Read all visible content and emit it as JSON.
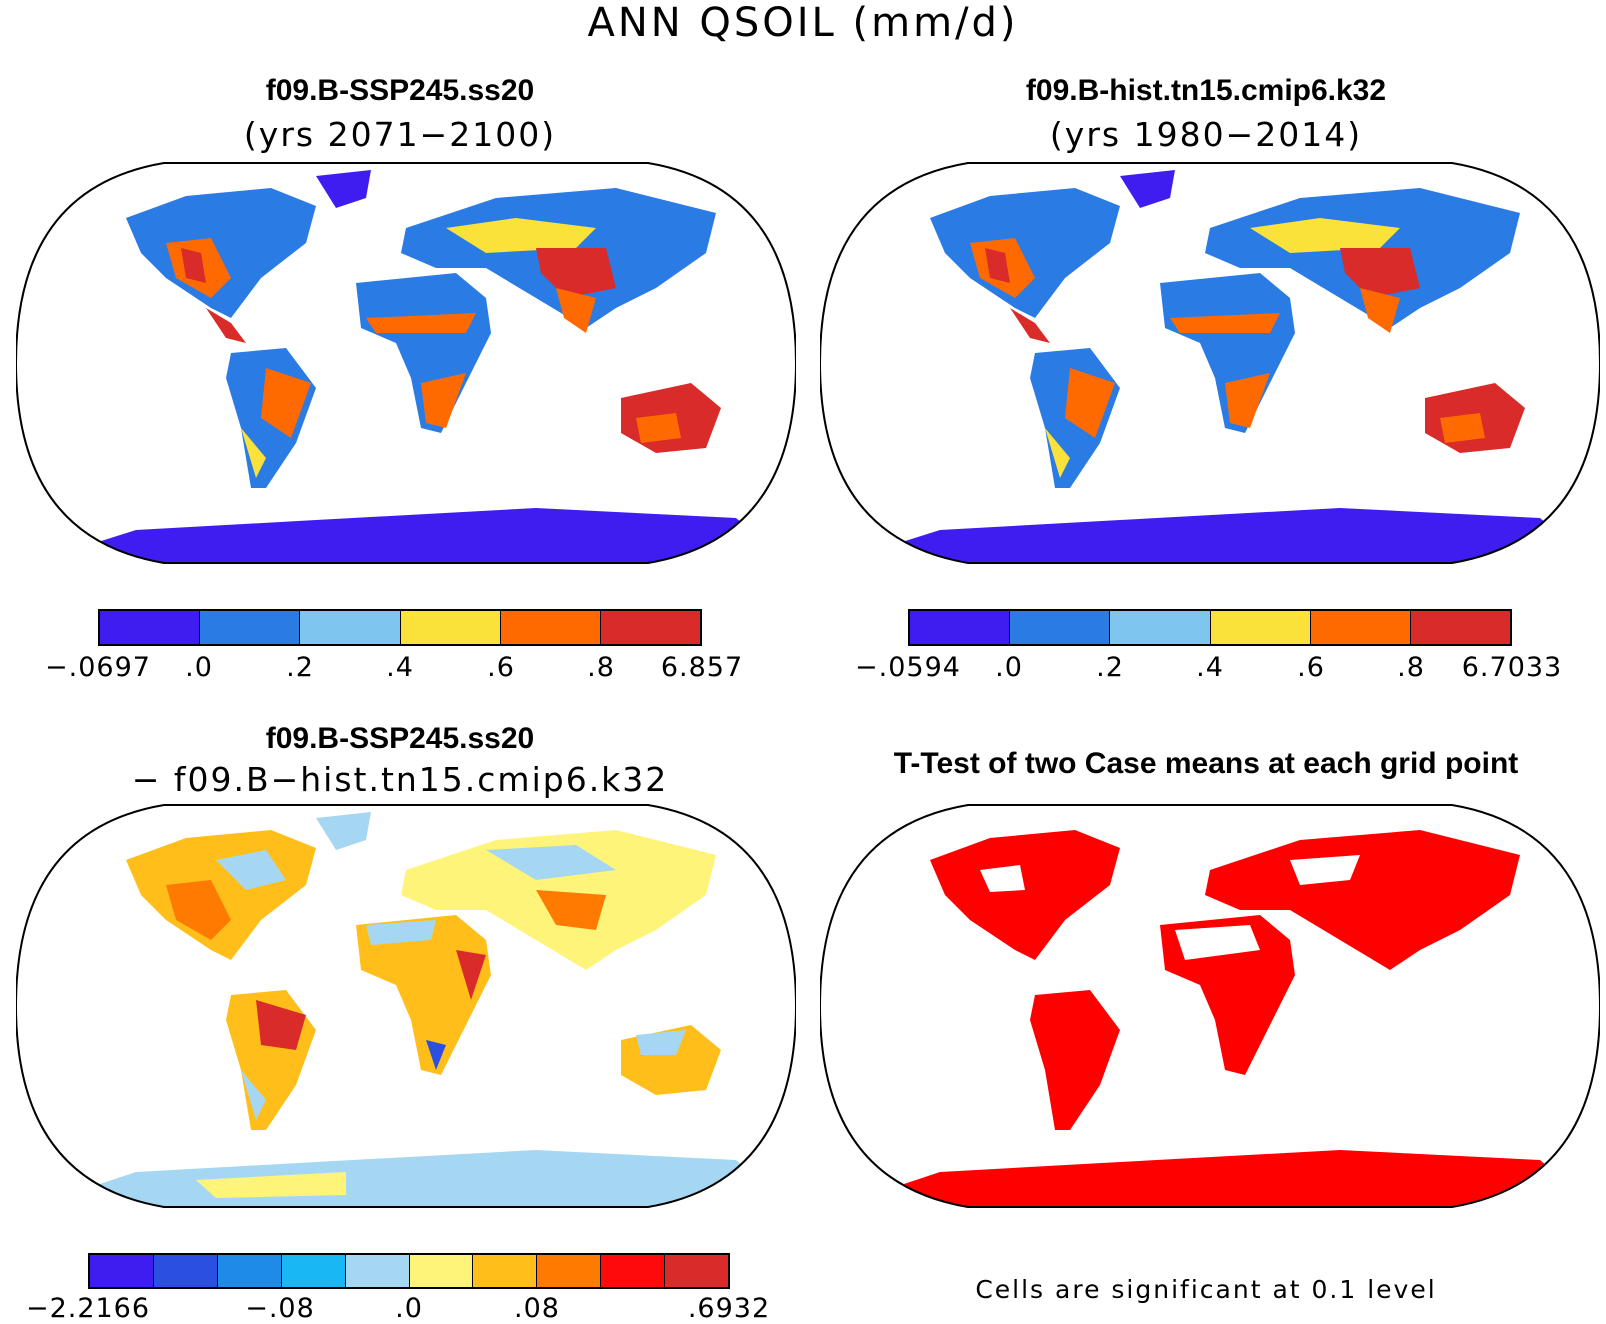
{
  "main_title": "ANN QSOIL (mm/d)",
  "panels": [
    {
      "title": "f09.B-SSP245.ss20",
      "subtitle": "(yrs 2071−2100)",
      "colorbar": {
        "colors": [
          "#3f1df0",
          "#2a7be4",
          "#7ec5f0",
          "#fbe23a",
          "#ff6a00",
          "#d92b2a"
        ],
        "labels": [
          "−.0697",
          ".0",
          ".2",
          ".4",
          ".6",
          ".8",
          "6.857"
        ]
      }
    },
    {
      "title": "f09.B-hist.tn15.cmip6.k32",
      "subtitle": "(yrs 1980−2014)",
      "colorbar": {
        "colors": [
          "#3f1df0",
          "#2a7be4",
          "#7ec5f0",
          "#fbe23a",
          "#ff6a00",
          "#d92b2a"
        ],
        "labels": [
          "−.0594",
          ".0",
          ".2",
          ".4",
          ".6",
          ".8",
          "6.7033"
        ]
      }
    },
    {
      "title": "f09.B-SSP245.ss20",
      "subtitle": "− f09.B−hist.tn15.cmip6.k32",
      "colorbar": {
        "colors": [
          "#3f1df0",
          "#2b4fe0",
          "#1f8be8",
          "#19b8f5",
          "#a6d7f2",
          "#fff47a",
          "#ffbe1a",
          "#ff7a00",
          "#ff0a0a",
          "#d92b2a"
        ],
        "labels": [
          "−2.2166",
          "−.08",
          ".0",
          ".08",
          ".6932"
        ]
      }
    },
    {
      "title": "T-Test of two Case means at each grid point",
      "note": "Cells are significant at 0.1 level"
    }
  ]
}
